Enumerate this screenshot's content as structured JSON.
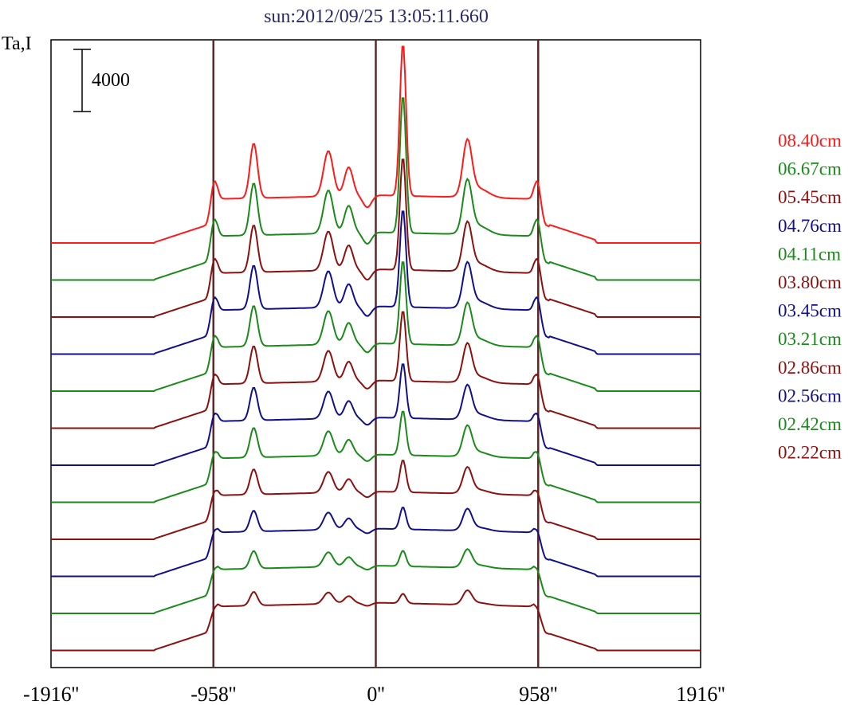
{
  "chart_data": {
    "type": "line",
    "title": "sun:2012/09/25 13:05:11.660",
    "ylabel": "Ta,I",
    "scale_bar_label": "4000",
    "x_ticks": [
      {
        "value": -1916,
        "label": "-1916''"
      },
      {
        "value": -958,
        "label": "-958''"
      },
      {
        "value": 0,
        "label": "0''"
      },
      {
        "value": 958,
        "label": "958''"
      },
      {
        "value": 1916,
        "label": "1916''"
      }
    ],
    "xlim": [
      -1916,
      1916
    ],
    "vertical_lines": [
      -958,
      0,
      958
    ],
    "legend_placement": "right",
    "series": [
      {
        "name": "08.40cm",
        "color": "#ff1a1a",
        "strength": 1.0
      },
      {
        "name": "06.67cm",
        "color": "#1a8a1a",
        "strength": 0.95
      },
      {
        "name": "05.45cm",
        "color": "#8b1010",
        "strength": 0.86
      },
      {
        "name": "04.76cm",
        "color": "#10108b",
        "strength": 0.8
      },
      {
        "name": "04.11cm",
        "color": "#1a8a1a",
        "strength": 0.74
      },
      {
        "name": "03.80cm",
        "color": "#8b1010",
        "strength": 0.68
      },
      {
        "name": "03.45cm",
        "color": "#10108b",
        "strength": 0.6
      },
      {
        "name": "03.21cm",
        "color": "#1a8a1a",
        "strength": 0.54
      },
      {
        "name": "02.86cm",
        "color": "#8b1010",
        "strength": 0.46
      },
      {
        "name": "02.56cm",
        "color": "#10108b",
        "strength": 0.38
      },
      {
        "name": "02.42cm",
        "color": "#1a8a1a",
        "strength": 0.32
      },
      {
        "name": "02.22cm",
        "color": "#8b1010",
        "strength": 0.25
      }
    ],
    "frame_color": "#000000",
    "vline_color": "#5a2a2a"
  }
}
